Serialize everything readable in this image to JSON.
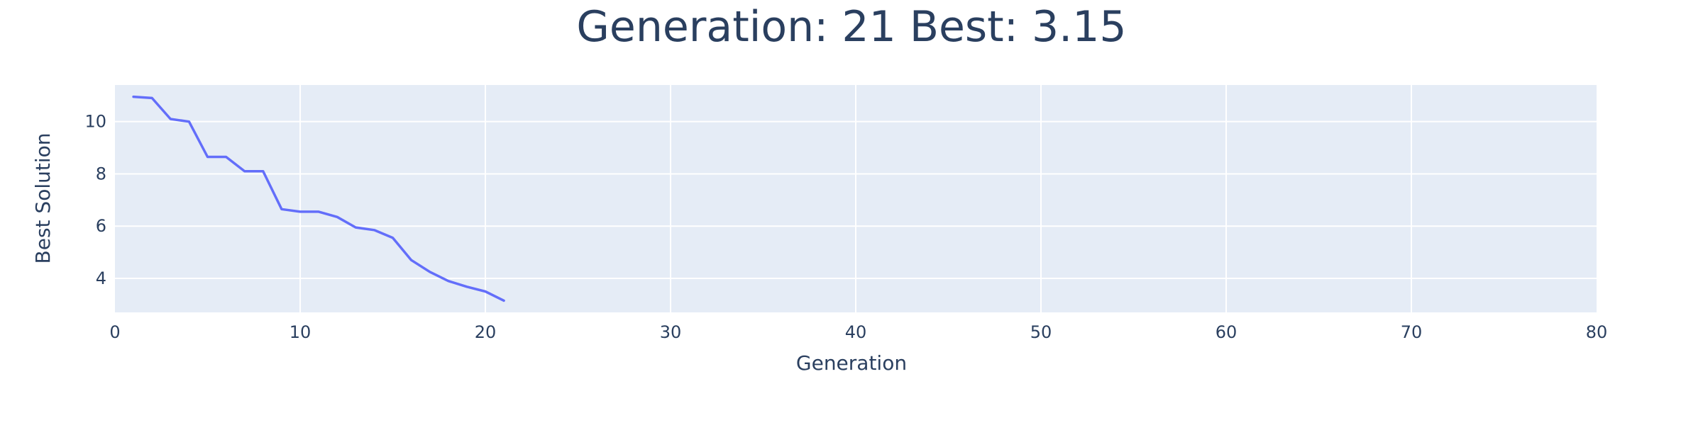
{
  "chart_data": {
    "type": "line",
    "title": "Generation: 21 Best: 3.15",
    "xlabel": "Generation",
    "ylabel": "Best Solution",
    "xlim": [
      0,
      80
    ],
    "ylim": [
      2.7,
      11.4
    ],
    "x_ticks": [
      "0",
      "10",
      "20",
      "30",
      "40",
      "50",
      "60",
      "70",
      "80"
    ],
    "x_tick_values": [
      0,
      10,
      20,
      30,
      40,
      50,
      60,
      70,
      80
    ],
    "y_ticks": [
      "4",
      "6",
      "8",
      "10"
    ],
    "y_tick_values": [
      4,
      6,
      8,
      10
    ],
    "grid": true,
    "colors": {
      "line": "#636efa",
      "plot_bg": "#e5ecf6",
      "grid": "#ffffff",
      "text": "#2a3f5f"
    },
    "series": [
      {
        "x": [
          1,
          2,
          3,
          4,
          5,
          6,
          7,
          8,
          9,
          10,
          11,
          12,
          13,
          14,
          15,
          16,
          17,
          18,
          19,
          20,
          21
        ],
        "values": [
          10.95,
          10.9,
          10.1,
          10.0,
          8.65,
          8.65,
          8.1,
          8.1,
          6.65,
          6.55,
          6.55,
          6.35,
          5.95,
          5.85,
          5.55,
          4.7,
          4.25,
          3.9,
          3.68,
          3.5,
          3.15
        ]
      }
    ]
  }
}
